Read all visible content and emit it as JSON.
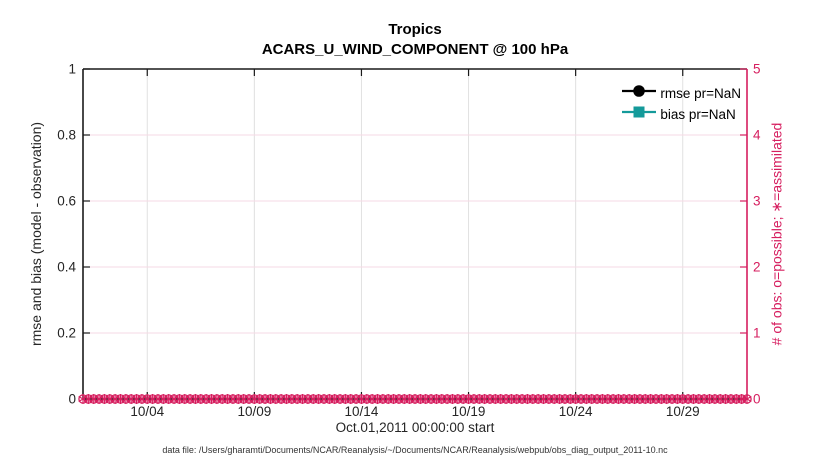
{
  "colors": {
    "accent_pink": "#d61e5f",
    "grid_pink": "#f6dae5",
    "grid_gray": "#e0e0e0",
    "axis_dark": "#1a1a1a",
    "tick_text": "#262626",
    "teal": "#149a9a",
    "black": "#000000",
    "background": "#ffffff"
  },
  "chart_data": {
    "type": "line",
    "title": "Tropics",
    "subtitle": "ACARS_U_WIND_COMPONENT @ 100 hPa",
    "footer": "data file: /Users/gharamti/Documents/NCAR/Reanalysis/~/Documents/NCAR/Reanalysis/webpub/obs_diag_output_2011-10.nc",
    "grid": true,
    "x_axis": {
      "label": "Oct.01,2011 00:00:00 start",
      "lim_days": [
        0,
        31
      ],
      "tick_days": [
        3,
        8,
        13,
        18,
        23,
        28
      ],
      "tick_labels": [
        "10/04",
        "10/09",
        "10/14",
        "10/19",
        "10/24",
        "10/29"
      ]
    },
    "y_axis_left": {
      "label": "rmse and bias (model - observation)",
      "lim": [
        0,
        1
      ],
      "tick_values": [
        0,
        0.2,
        0.4,
        0.6,
        0.8,
        1
      ],
      "tick_labels": [
        "0",
        "0.2",
        "0.4",
        "0.6",
        "0.8",
        "1"
      ]
    },
    "y_axis_right": {
      "label": "# of obs: o=possible; ∗=assimilated",
      "lim": [
        0,
        5
      ],
      "tick_values": [
        0,
        1,
        2,
        3,
        4,
        5
      ],
      "tick_labels": [
        "0",
        "1",
        "2",
        "3",
        "4",
        "5"
      ]
    },
    "legend": {
      "position": "upper-right",
      "box": false,
      "items": [
        {
          "label": "rmse pr=NaN",
          "color": "#000000",
          "marker": "circle"
        },
        {
          "label": "bias pr=NaN",
          "color": "#149a9a",
          "marker": "square"
        }
      ]
    },
    "series": [
      {
        "name": "rmse pr=NaN",
        "axis": "left",
        "color": "#000000",
        "marker": "circle",
        "values": []
      },
      {
        "name": "bias pr=NaN",
        "axis": "left",
        "color": "#149a9a",
        "marker": "square",
        "values": []
      },
      {
        "name": "possible obs (o)",
        "axis": "right",
        "color": "#d61e5f",
        "marker": "o",
        "time_days": {
          "start": 0,
          "end": 31,
          "step": 0.25
        },
        "value_at_all_times": 0
      },
      {
        "name": "assimilated obs (∗)",
        "axis": "right",
        "color": "#d61e5f",
        "marker": "asterisk",
        "time_days": {
          "start": 0,
          "end": 31,
          "step": 0.25
        },
        "value_at_all_times": 0
      }
    ]
  }
}
